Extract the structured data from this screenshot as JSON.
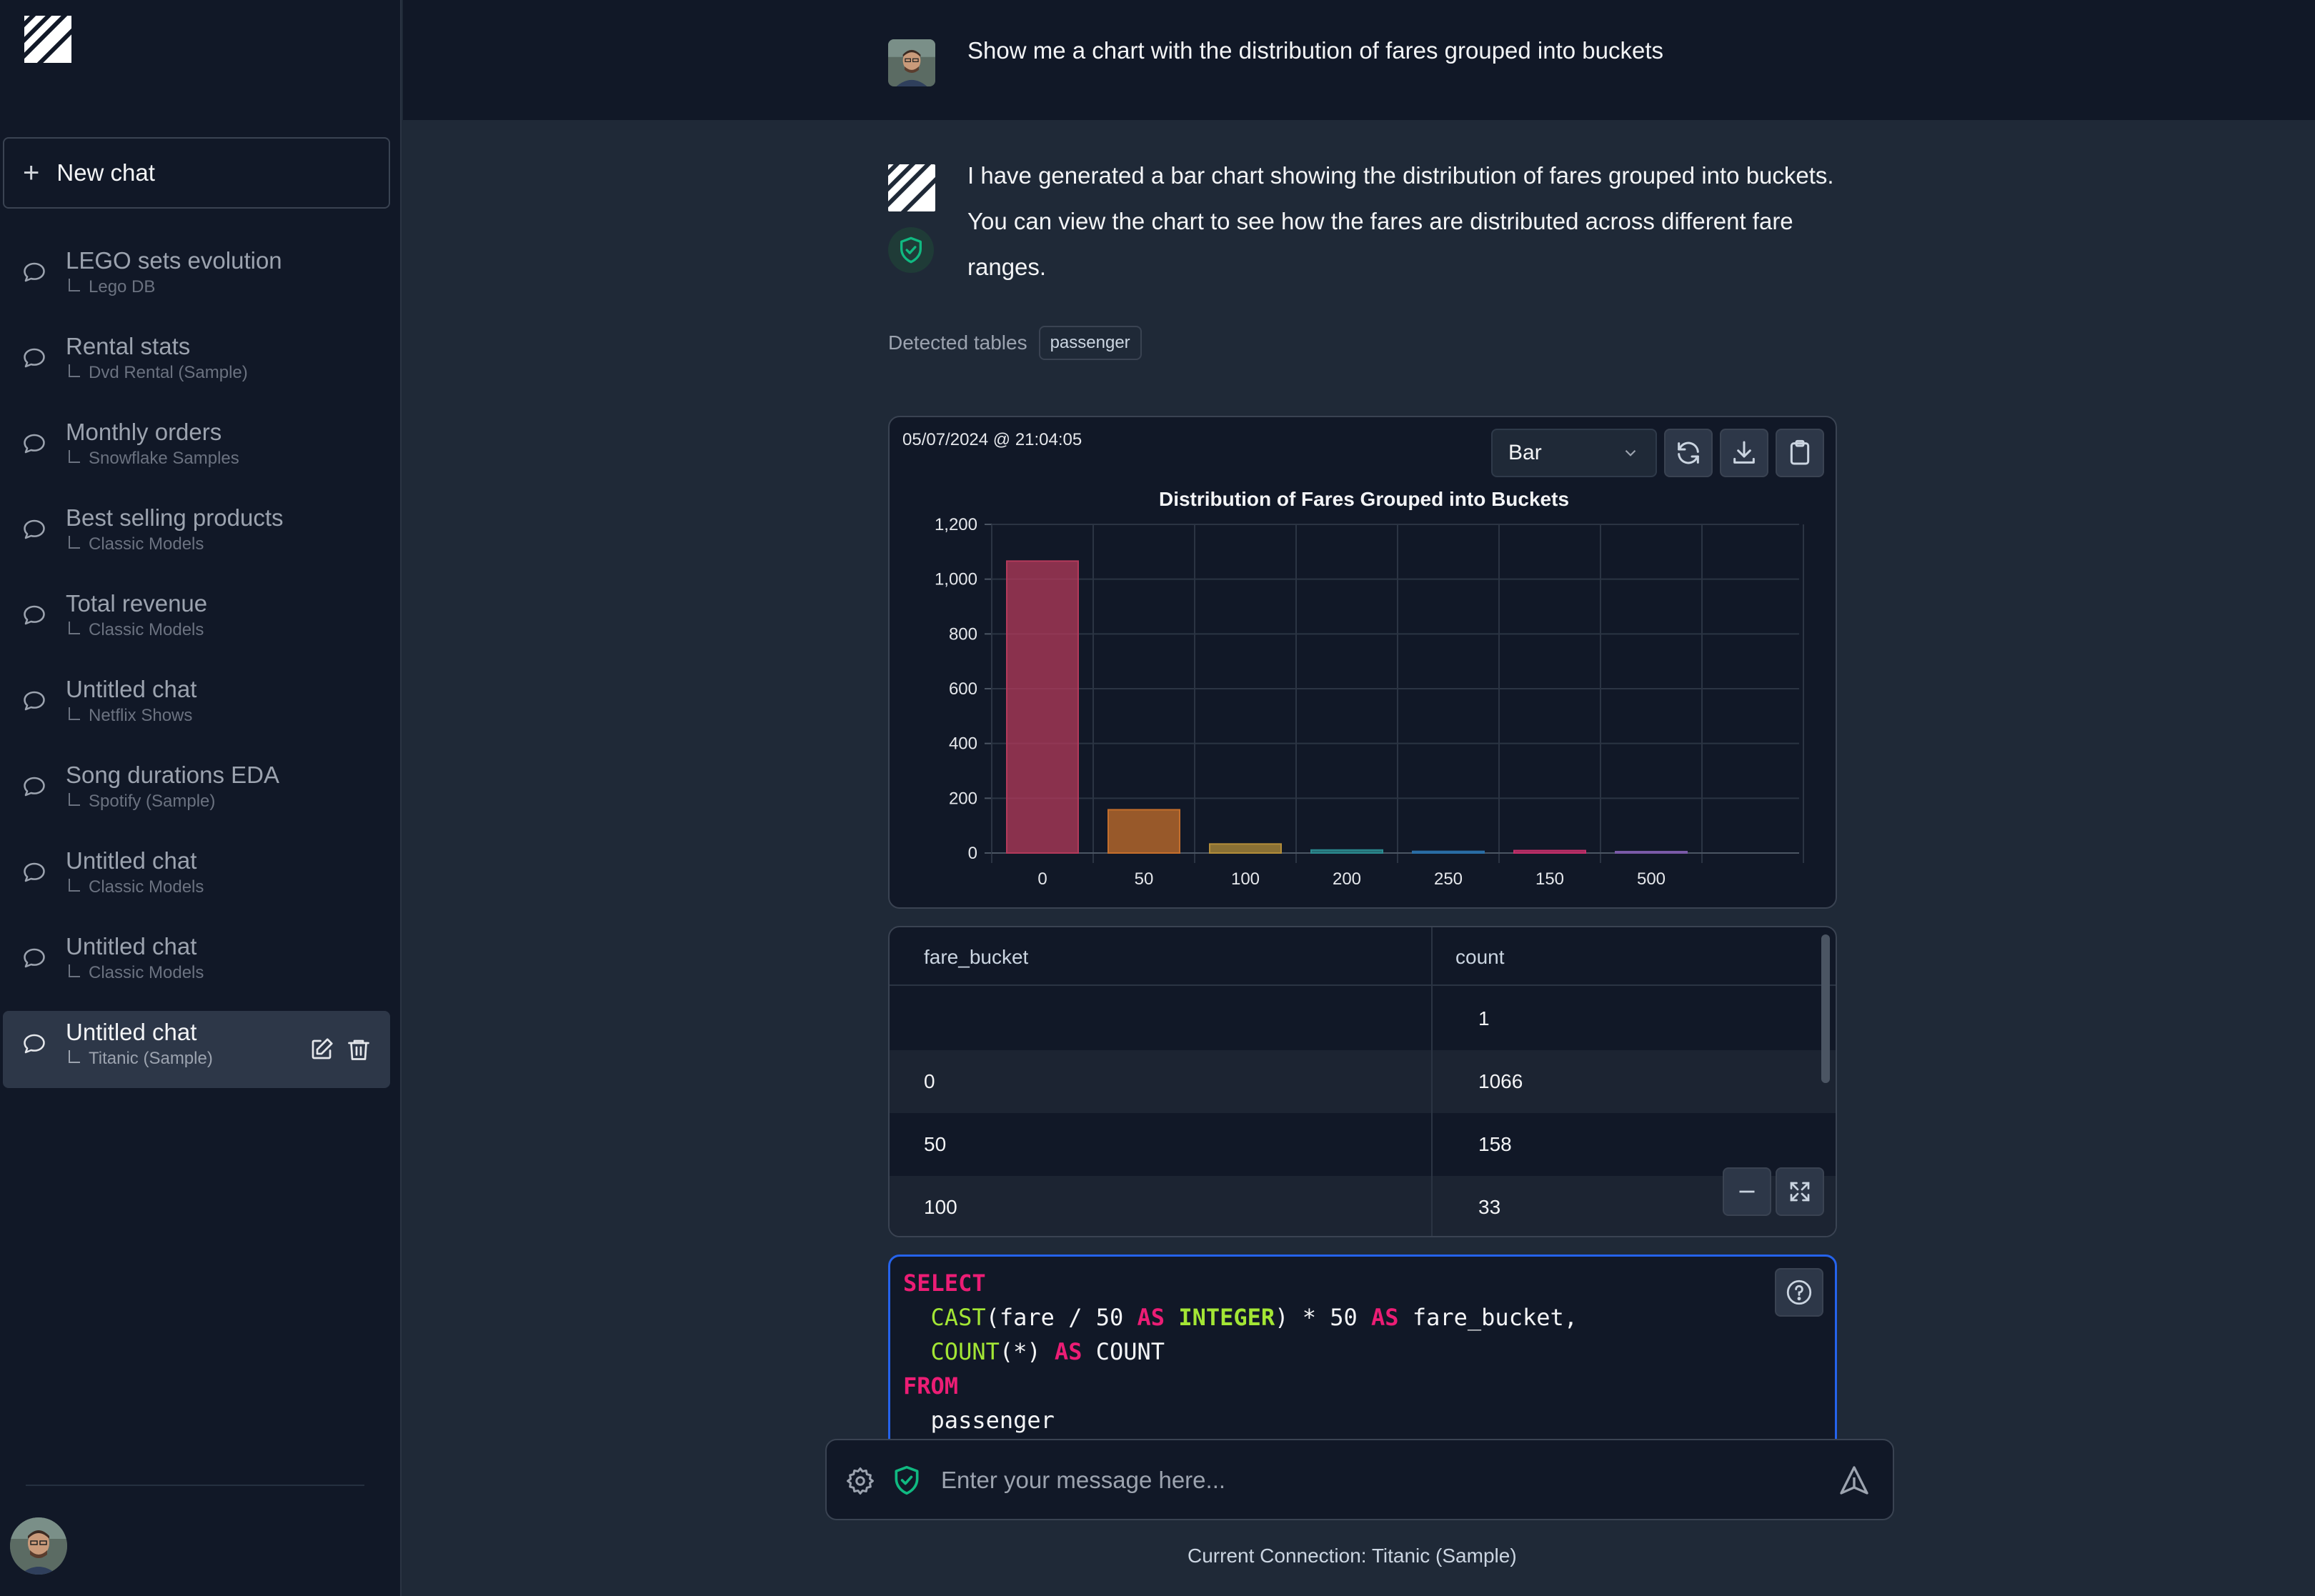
{
  "sidebar": {
    "new_chat_label": "New chat",
    "items": [
      {
        "title": "LEGO sets evolution",
        "db": "Lego DB"
      },
      {
        "title": "Rental stats",
        "db": "Dvd Rental (Sample)"
      },
      {
        "title": "Monthly orders",
        "db": "Snowflake Samples"
      },
      {
        "title": "Best selling products",
        "db": "Classic Models"
      },
      {
        "title": "Total revenue",
        "db": "Classic Models"
      },
      {
        "title": "Untitled chat",
        "db": "Netflix Shows"
      },
      {
        "title": "Song durations EDA",
        "db": "Spotify (Sample)"
      },
      {
        "title": "Untitled chat",
        "db": "Classic Models"
      },
      {
        "title": "Untitled chat",
        "db": "Classic Models"
      },
      {
        "title": "Untitled chat",
        "db": "Titanic (Sample)",
        "active": true
      }
    ]
  },
  "conversation": {
    "user_message": "Show me a chart with the distribution of fares grouped into buckets",
    "ai_message": "I have generated a bar chart showing the distribution of fares grouped into buckets. You can view the chart to see how the fares are distributed across different fare ranges.",
    "detected_label": "Detected tables",
    "detected_tables": [
      "passenger"
    ]
  },
  "chart_card": {
    "timestamp": "05/07/2024 @ 21:04:05",
    "chart_type_selected": "Bar"
  },
  "chart_data": {
    "type": "bar",
    "title": "Distribution of Fares Grouped into Buckets",
    "categories": [
      "0",
      "50",
      "100",
      "200",
      "250",
      "150",
      "500"
    ],
    "values": [
      1066,
      158,
      33,
      11,
      6,
      9,
      3
    ],
    "colors": [
      "#b33a5b",
      "#c56f2c",
      "#b38d3a",
      "#2b8a8f",
      "#2a6fa8",
      "#c42f6a",
      "#7a5aa8"
    ],
    "ylim": [
      0,
      1200
    ],
    "yticks": [
      "0",
      "200",
      "400",
      "600",
      "800",
      "1,000",
      "1,200"
    ],
    "grid": true
  },
  "table": {
    "columns": [
      "fare_bucket",
      "count"
    ],
    "rows": [
      [
        "",
        "1"
      ],
      [
        "0",
        "1066"
      ],
      [
        "50",
        "158"
      ],
      [
        "100",
        "33"
      ]
    ]
  },
  "sql": {
    "line1_kw": "SELECT",
    "line2_fn": "CAST",
    "line2_a": "(fare / 50 ",
    "line2_as1": "AS",
    "line2_type": "INTEGER",
    "line2_b": ") * 50 ",
    "line2_as2": "AS",
    "line2_c": " fare_bucket,",
    "line3_fn": "COUNT",
    "line3_a": "(*) ",
    "line3_as": "AS",
    "line3_b": " COUNT",
    "line4_kw": "FROM",
    "line5": "passenger"
  },
  "input": {
    "placeholder": "Enter your message here...",
    "connection": "Current Connection: Titanic (Sample)"
  },
  "theme": {
    "accent_green": "#10b981",
    "accent_blue": "#2563eb",
    "sql_keyword": "#ec1d75",
    "sql_function": "#a3e635"
  }
}
